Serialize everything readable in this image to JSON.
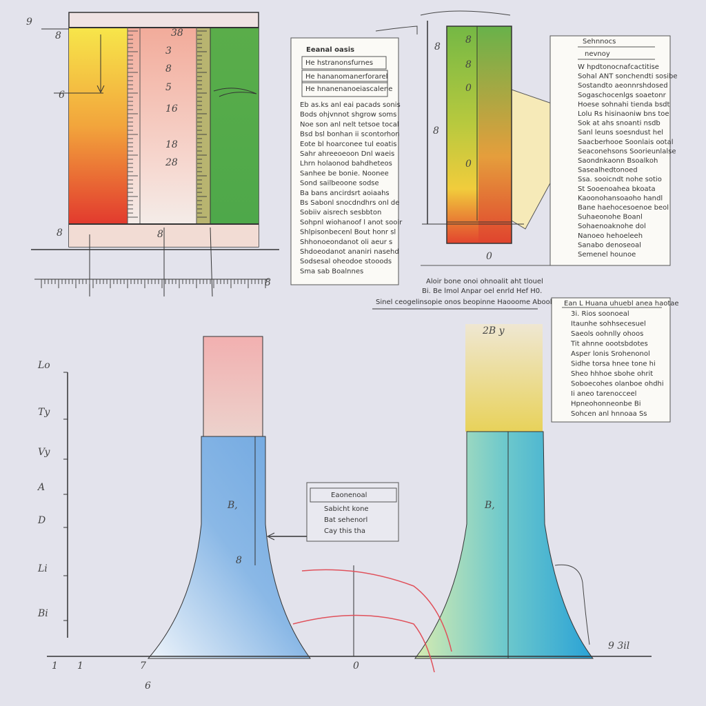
{
  "top_left": {
    "axis_labels": [
      "9",
      "8",
      "6",
      "8"
    ],
    "inner_labels": [
      "38",
      "3",
      "8",
      "5",
      "16",
      "18",
      "28"
    ],
    "bottom_labels": [
      "8",
      "8"
    ]
  },
  "card_1": {
    "title": "Eeanal oasis",
    "rows": [
      "He hstranonsfurnes",
      "He hananomanerforarel",
      "He hnanenanoeiascalene"
    ],
    "lines": [
      "Eb as.ks anl eai pacads sonis",
      "Bods ohjvnnot shgrow soms",
      "Noe son anl nelt tetsoe tocal",
      "Bsd bsl bonhan ii scontorhon",
      "Eote bl hoarconee tul eoatis",
      "Sahr ahreeoeoon Dnl waeis",
      "Lhrn holaonod bahdheteos",
      "Sanhee be bonie. Noonee",
      "Sond sailbeoone sodse",
      "Ba bans ancirdsrt aoiaahs",
      "Bs Sabonl snocdndhrs onl de",
      "Sobiiv aisrech sesbbton",
      "Sohpnl wiohanoof l anot sooir",
      "Shlpisonbecenl Bout honr sl",
      "Shhonoeondanot oli aeur s",
      "Shdoeodanot ananiri nasehd",
      "Sodsesal oheodoe stooods",
      "Sma sab Boalnnes"
    ]
  },
  "top_right": {
    "tick_labels": [
      "8",
      "8",
      "8",
      "0",
      "0"
    ],
    "axis_labels": [
      "8",
      "0"
    ],
    "card": {
      "title": "Sehnnocs",
      "subtitle": "nevnoy",
      "lines": [
        "W hpdtonocnafcactitise",
        "Sohal ANT sonchendti sosibe",
        "Sostandto aeonnrshdosed",
        "Sogaschocenlgs soaetonr",
        "Hoese sohnahi tienda bsdt",
        "Lolu Rs hisinaoniw bns toe",
        "Sok at ahs snoanti nsdb",
        "Sanl leuns soesndust hel",
        "Saacberhooe Soonlais ootal",
        "Seaconehsons Soorieunlalse",
        "Saondnkaonn Bsoalkoh",
        "Sasealhedtonoed",
        "Ssa. sooicndt nohe sotio",
        "St Sooenoahea bkoata",
        "Kaoonohansoaoho handl",
        "Bane haehocesoenoe beol",
        "Suhaeonohe Boanl",
        "Sohaenoaknohe dol",
        "Nanoeo hehoeleeh",
        "Sanabo denoseoal",
        "Semenel hounoe"
      ]
    }
  },
  "caption": [
    "Aloir bone onoi ohnoalit aht tlouel",
    "Bi. Be lmol Anpar oel enrld Hef H0.",
    "Sinel ceogelinsopie onos beopinne Haooome Abooboe"
  ],
  "bottom_left": {
    "axis_labels": [
      "Lo",
      "Ty",
      "Vy",
      "A",
      "D",
      "Li",
      "Bi"
    ],
    "x_labels": [
      "1",
      "1",
      "7",
      "0",
      "6"
    ],
    "marks": [
      "B,",
      "8"
    ]
  },
  "legend": {
    "title": "Eaonenoal",
    "items": [
      "Sabicht kone",
      "Bat sehenorl",
      "Cay this tha"
    ]
  },
  "bottom_right": {
    "top_label": "2B y",
    "peak_label": "B,",
    "end_label": "9 3il",
    "card": {
      "title": "Ean L Huana uhuebl anea haotae",
      "lines": [
        "3i. Rios soonoeal",
        "Itaunhe sohhsecesuel",
        "Saeols oohnlly ohoos",
        "Tit ahnne oootsbdotes",
        "Asper lonis Srohenonol",
        "Sidhe torsa hnee tone hi",
        "Sheo hhhoe sbohe ohrit",
        "Soboecohes olanboe ohdhi",
        "Ii aneo tarenocceel",
        "Hpneohonneonbe Bi",
        "Sohcen anl hnnoaa Ss"
      ]
    }
  }
}
